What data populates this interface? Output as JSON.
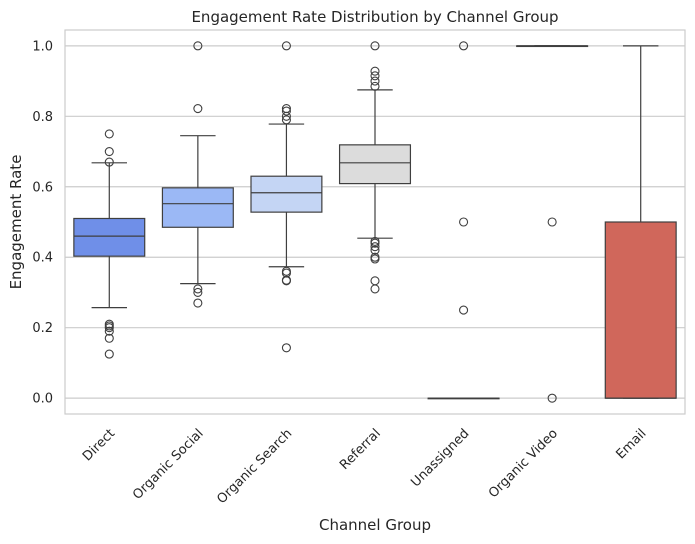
{
  "chart_data": {
    "type": "box",
    "title": "Engagement Rate Distribution by Channel Group",
    "xlabel": "Channel Group",
    "ylabel": "Engagement Rate",
    "ylim": [
      -0.045,
      1.045
    ],
    "yticks": [
      "0.0",
      "0.2",
      "0.4",
      "0.6",
      "0.8",
      "1.0"
    ],
    "ytick_values": [
      0.0,
      0.2,
      0.4,
      0.6,
      0.8,
      1.0
    ],
    "grid": "horizontal",
    "categories": [
      "Direct",
      "Organic Social",
      "Organic Search",
      "Referral",
      "Unassigned",
      "Organic Video",
      "Email"
    ],
    "boxes": [
      {
        "category": "Direct",
        "color": "#6f8fe8",
        "q1": 0.403,
        "median": 0.46,
        "q3": 0.51,
        "whisker_low": 0.257,
        "whisker_high": 0.668,
        "outliers": [
          0.75,
          0.7,
          0.67,
          0.21,
          0.205,
          0.2,
          0.19,
          0.17,
          0.125
        ]
      },
      {
        "category": "Organic Social",
        "color": "#9bb8f5",
        "q1": 0.485,
        "median": 0.552,
        "q3": 0.597,
        "whisker_low": 0.325,
        "whisker_high": 0.745,
        "outliers": [
          1.0,
          0.822,
          0.31,
          0.3,
          0.27
        ]
      },
      {
        "category": "Organic Search",
        "color": "#c4d5f4",
        "q1": 0.528,
        "median": 0.583,
        "q3": 0.63,
        "whisker_low": 0.373,
        "whisker_high": 0.778,
        "outliers": [
          1.0,
          0.822,
          0.815,
          0.8,
          0.79,
          0.36,
          0.355,
          0.335,
          0.333,
          0.143
        ]
      },
      {
        "category": "Referral",
        "color": "#dcdcdc",
        "q1": 0.609,
        "median": 0.668,
        "q3": 0.719,
        "whisker_low": 0.454,
        "whisker_high": 0.875,
        "outliers": [
          1.0,
          0.928,
          0.915,
          0.9,
          0.885,
          0.445,
          0.44,
          0.43,
          0.42,
          0.4,
          0.395,
          0.333,
          0.31
        ]
      },
      {
        "category": "Unassigned",
        "color": "#f3c5ad",
        "q1": 0.0,
        "median": 0.0,
        "q3": 0.0,
        "whisker_low": 0.0,
        "whisker_high": 0.0,
        "outliers": [
          1.0,
          0.5,
          0.25
        ]
      },
      {
        "category": "Organic Video",
        "color": "#f2a285",
        "q1": 1.0,
        "median": 1.0,
        "q3": 1.0,
        "whisker_low": 1.0,
        "whisker_high": 1.0,
        "outliers": [
          0.5,
          0.0
        ]
      },
      {
        "category": "Email",
        "color": "#d0675b",
        "q1": 0.0,
        "median": 0.0,
        "q3": 0.5,
        "whisker_low": 0.0,
        "whisker_high": 1.0,
        "outliers": []
      }
    ]
  }
}
